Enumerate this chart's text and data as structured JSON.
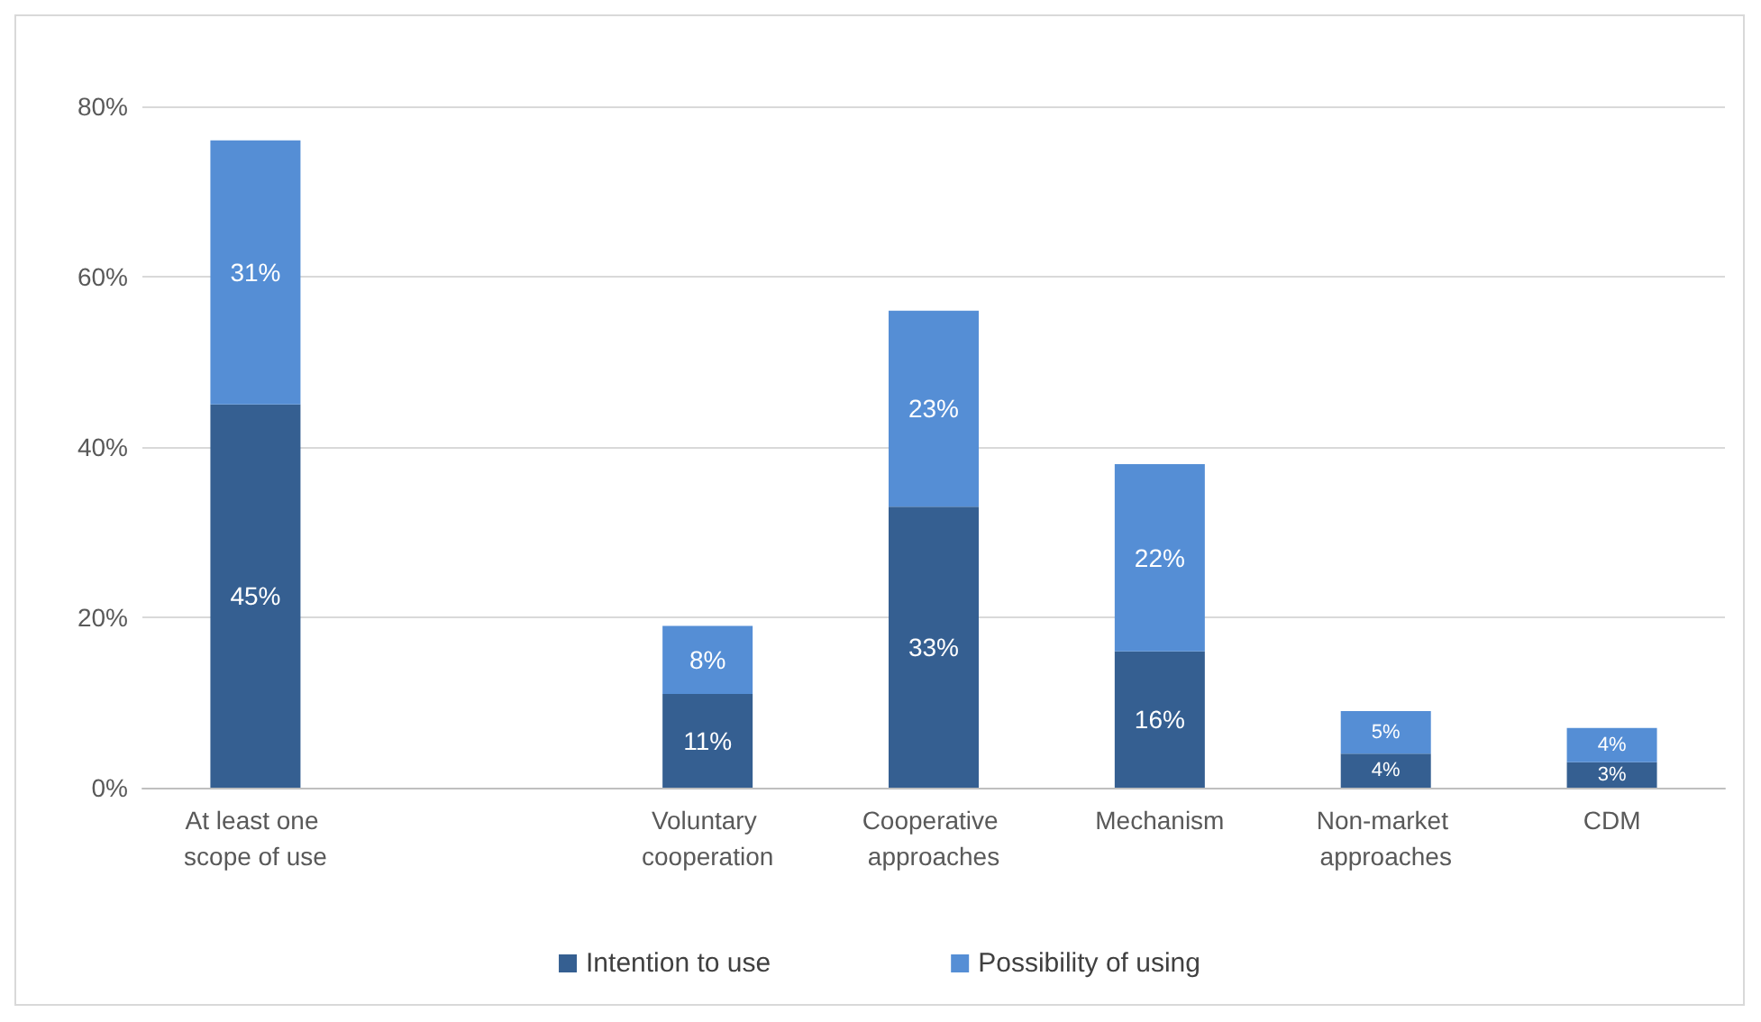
{
  "chart_data": {
    "type": "bar",
    "stacked": true,
    "categories": [
      "At least one scope of use",
      null,
      "Voluntary cooperation",
      "Cooperative approaches",
      "Mechanism",
      "Non-market approaches",
      "CDM"
    ],
    "series": [
      {
        "name": "Intention to use",
        "color": "#355f91",
        "values": [
          45,
          null,
          11,
          33,
          16,
          4,
          3
        ],
        "value_labels": [
          "45%",
          null,
          "11%",
          "33%",
          "16%",
          "4%",
          "3%"
        ]
      },
      {
        "name": "Possibility of using",
        "color": "#558ed5",
        "values": [
          31,
          null,
          8,
          23,
          22,
          5,
          4
        ],
        "value_labels": [
          "31%",
          null,
          "8%",
          "23%",
          "22%",
          "5%",
          "4%"
        ]
      }
    ],
    "ylim": [
      0,
      80
    ],
    "yticks": [
      {
        "value": 0,
        "label": "0%"
      },
      {
        "value": 20,
        "label": "20%"
      },
      {
        "value": 40,
        "label": "40%"
      },
      {
        "value": 60,
        "label": "60%"
      },
      {
        "value": 80,
        "label": "80%"
      }
    ],
    "grid": "y",
    "legend": "bottom"
  }
}
